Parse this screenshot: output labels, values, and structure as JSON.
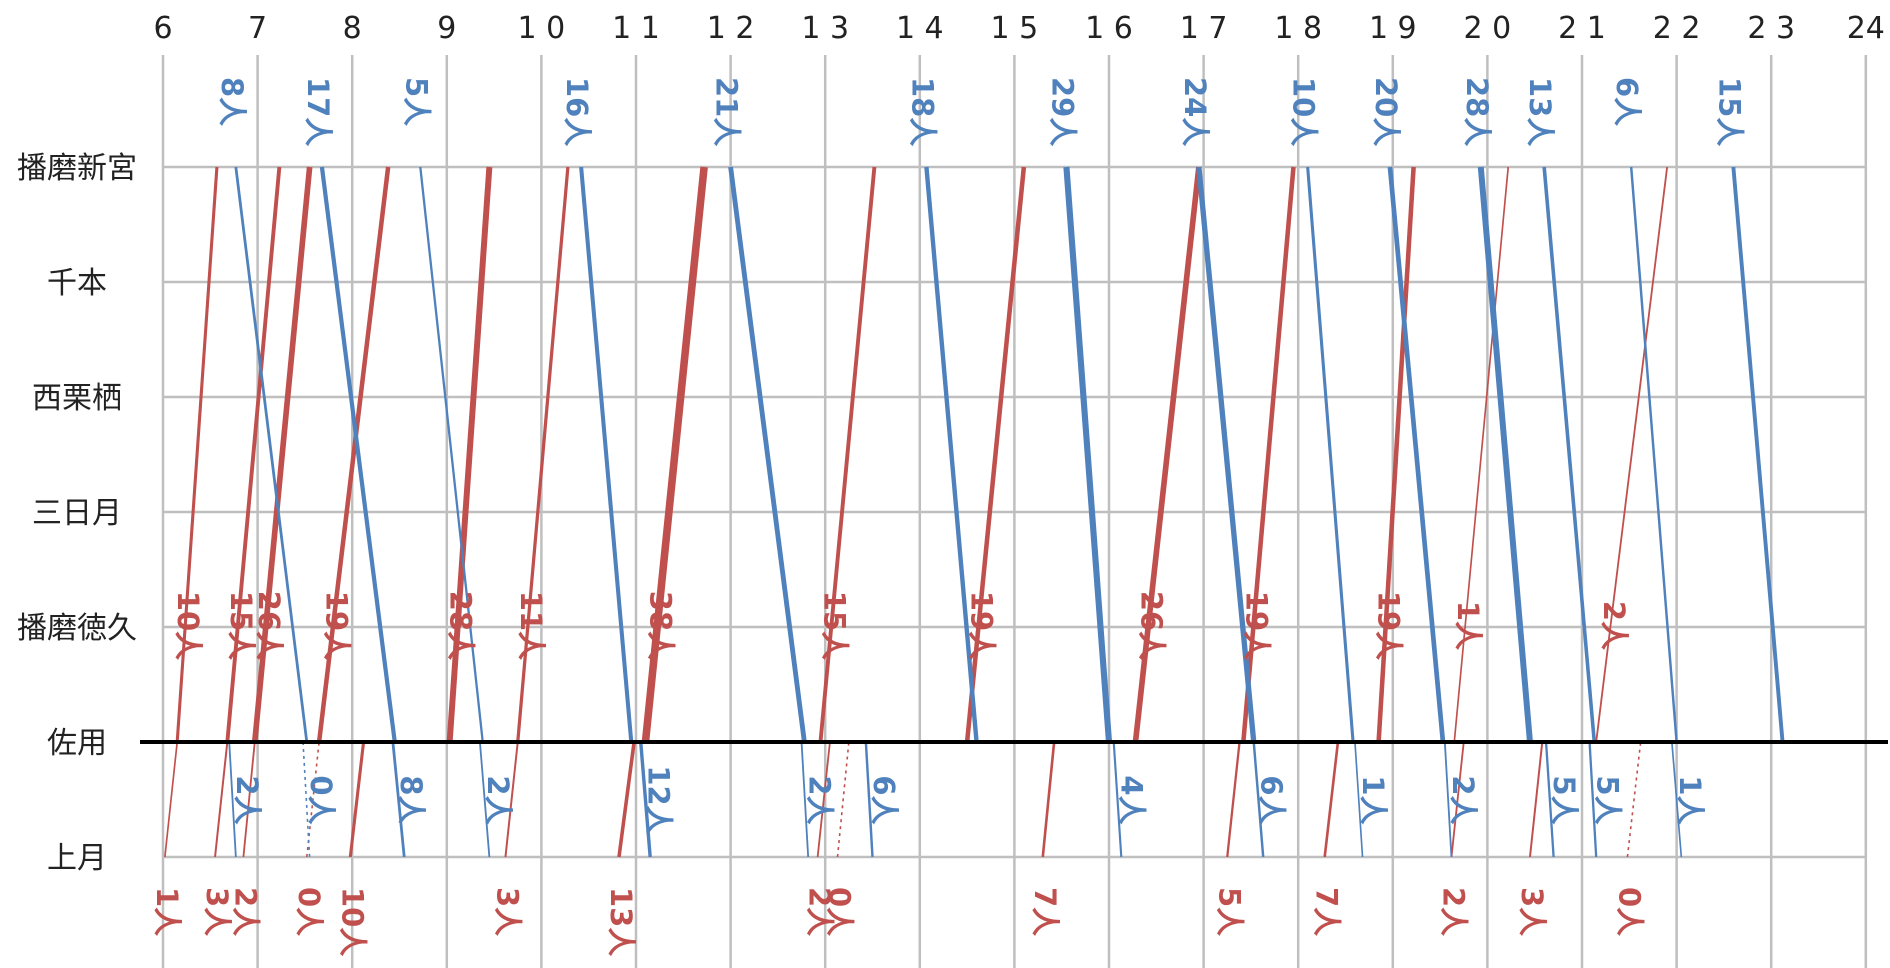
{
  "chart_data": {
    "type": "line",
    "title": "",
    "xlabel": "",
    "ylabel": "",
    "xlim": [
      6,
      24
    ],
    "x_tick_labels": [
      "6",
      "7",
      "8",
      "9",
      "1 0",
      "1 1",
      "1 2",
      "1 3",
      "1 4",
      "1 5",
      "1 6",
      "1 7",
      "1 8",
      "1 9",
      "2 0",
      "2 1",
      "2 2",
      "2 3",
      "24"
    ],
    "stations": [
      "播磨新宮",
      "千本",
      "西栗栖",
      "三日月",
      "播磨徳久",
      "佐用",
      "上月"
    ],
    "grid": true,
    "colors": {
      "up": "#C0504D",
      "down": "#4F81BD",
      "grid": "#BFBFBF",
      "axis": "#000000"
    },
    "up_trains_sayo_shingu": [
      {
        "dep": 6.15,
        "arr": 6.57,
        "label": "10人",
        "weight": 10
      },
      {
        "dep": 6.68,
        "arr": 7.23,
        "label": "15人",
        "weight": 15
      },
      {
        "dep": 6.97,
        "arr": 7.55,
        "label": "26人",
        "weight": 26
      },
      {
        "dep": 7.65,
        "arr": 8.38,
        "label": "19人",
        "weight": 19
      },
      {
        "dep": 9.03,
        "arr": 9.45,
        "label": "28人",
        "weight": 28
      },
      {
        "dep": 9.75,
        "arr": 10.28,
        "label": "11人",
        "weight": 11
      },
      {
        "dep": 11.1,
        "arr": 11.72,
        "label": "38人",
        "weight": 38
      },
      {
        "dep": 12.95,
        "arr": 13.52,
        "label": "15人",
        "weight": 15
      },
      {
        "dep": 14.5,
        "arr": 15.1,
        "label": "19人",
        "weight": 19
      },
      {
        "dep": 16.28,
        "arr": 16.95,
        "label": "26人",
        "weight": 26
      },
      {
        "dep": 17.42,
        "arr": 17.95,
        "label": "19人",
        "weight": 19
      },
      {
        "dep": 18.85,
        "arr": 19.22,
        "label": "19人",
        "weight": 19
      },
      {
        "dep": 19.65,
        "arr": 20.22,
        "label": "1人",
        "weight": 1
      },
      {
        "dep": 21.15,
        "arr": 21.9,
        "label": "2人",
        "weight": 2
      }
    ],
    "up_trains_kozuki_sayo": [
      {
        "dep": 6.02,
        "arr": 6.15,
        "label": "1人",
        "weight": 1
      },
      {
        "dep": 6.55,
        "arr": 6.68,
        "label": "3人",
        "weight": 3
      },
      {
        "dep": 6.85,
        "arr": 6.97,
        "label": "2人",
        "weight": 2
      },
      {
        "dep": 7.52,
        "arr": 7.65,
        "label": "0人",
        "weight": 0
      },
      {
        "dep": 7.98,
        "arr": 8.12,
        "label": "10人",
        "weight": 10
      },
      {
        "dep": 9.62,
        "arr": 9.75,
        "label": "3人",
        "weight": 3
      },
      {
        "dep": 10.82,
        "arr": 10.98,
        "label": "13人",
        "weight": 13
      },
      {
        "dep": 12.92,
        "arr": 13.05,
        "label": "2人",
        "weight": 2
      },
      {
        "dep": 13.13,
        "arr": 13.25,
        "label": "0人",
        "weight": 0
      },
      {
        "dep": 15.3,
        "arr": 15.42,
        "label": "7人",
        "weight": 7
      },
      {
        "dep": 17.25,
        "arr": 17.38,
        "label": "5人",
        "weight": 5
      },
      {
        "dep": 18.28,
        "arr": 18.42,
        "label": "7人",
        "weight": 7
      },
      {
        "dep": 19.62,
        "arr": 19.75,
        "label": "2人",
        "weight": 2
      },
      {
        "dep": 20.45,
        "arr": 20.58,
        "label": "3人",
        "weight": 3
      },
      {
        "dep": 21.48,
        "arr": 21.62,
        "label": "0人",
        "weight": 0
      }
    ],
    "down_trains_shingu_sayo": [
      {
        "dep": 6.77,
        "arr": 7.52,
        "label": "8人",
        "weight": 8
      },
      {
        "dep": 7.68,
        "arr": 8.45,
        "label": "17人",
        "weight": 17
      },
      {
        "dep": 8.72,
        "arr": 9.38,
        "label": "5人",
        "weight": 5
      },
      {
        "dep": 10.42,
        "arr": 10.95,
        "label": "16人",
        "weight": 16
      },
      {
        "dep": 12.0,
        "arr": 12.78,
        "label": "21人",
        "weight": 21
      },
      {
        "dep": 14.07,
        "arr": 14.6,
        "label": "18人",
        "weight": 18
      },
      {
        "dep": 15.55,
        "arr": 16.0,
        "label": "29人",
        "weight": 29
      },
      {
        "dep": 16.95,
        "arr": 17.53,
        "label": "24人",
        "weight": 24
      },
      {
        "dep": 18.1,
        "arr": 18.58,
        "label": "10人",
        "weight": 10
      },
      {
        "dep": 18.97,
        "arr": 19.53,
        "label": "20人",
        "weight": 20
      },
      {
        "dep": 19.93,
        "arr": 20.45,
        "label": "28人",
        "weight": 28
      },
      {
        "dep": 20.6,
        "arr": 21.13,
        "label": "13人",
        "weight": 13
      },
      {
        "dep": 21.52,
        "arr": 22.0,
        "label": "6人",
        "weight": 6
      },
      {
        "dep": 22.6,
        "arr": 23.12,
        "label": "15人",
        "weight": 15
      }
    ],
    "down_trains_sayo_kozuki": [
      {
        "dep": 6.7,
        "arr": 6.77,
        "label": "2人",
        "weight": 2
      },
      {
        "dep": 7.48,
        "arr": 7.55,
        "label": "0人",
        "weight": 0
      },
      {
        "dep": 8.43,
        "arr": 8.55,
        "label": "8人",
        "weight": 8
      },
      {
        "dep": 9.35,
        "arr": 9.45,
        "label": "2人",
        "weight": 2
      },
      {
        "dep": 11.05,
        "arr": 11.15,
        "label": "12人",
        "weight": 12
      },
      {
        "dep": 12.75,
        "arr": 12.82,
        "label": "2人",
        "weight": 2
      },
      {
        "dep": 13.43,
        "arr": 13.5,
        "label": "6人",
        "weight": 6
      },
      {
        "dep": 16.05,
        "arr": 16.13,
        "label": "4人",
        "weight": 4
      },
      {
        "dep": 17.53,
        "arr": 17.63,
        "label": "6人",
        "weight": 6
      },
      {
        "dep": 18.6,
        "arr": 18.68,
        "label": "1人",
        "weight": 1
      },
      {
        "dep": 19.55,
        "arr": 19.62,
        "label": "2人",
        "weight": 2
      },
      {
        "dep": 20.62,
        "arr": 20.7,
        "label": "5人",
        "weight": 5
      },
      {
        "dep": 21.08,
        "arr": 21.15,
        "label": "5人",
        "weight": 5
      },
      {
        "dep": 21.95,
        "arr": 22.05,
        "label": "1人",
        "weight": 1
      }
    ]
  }
}
